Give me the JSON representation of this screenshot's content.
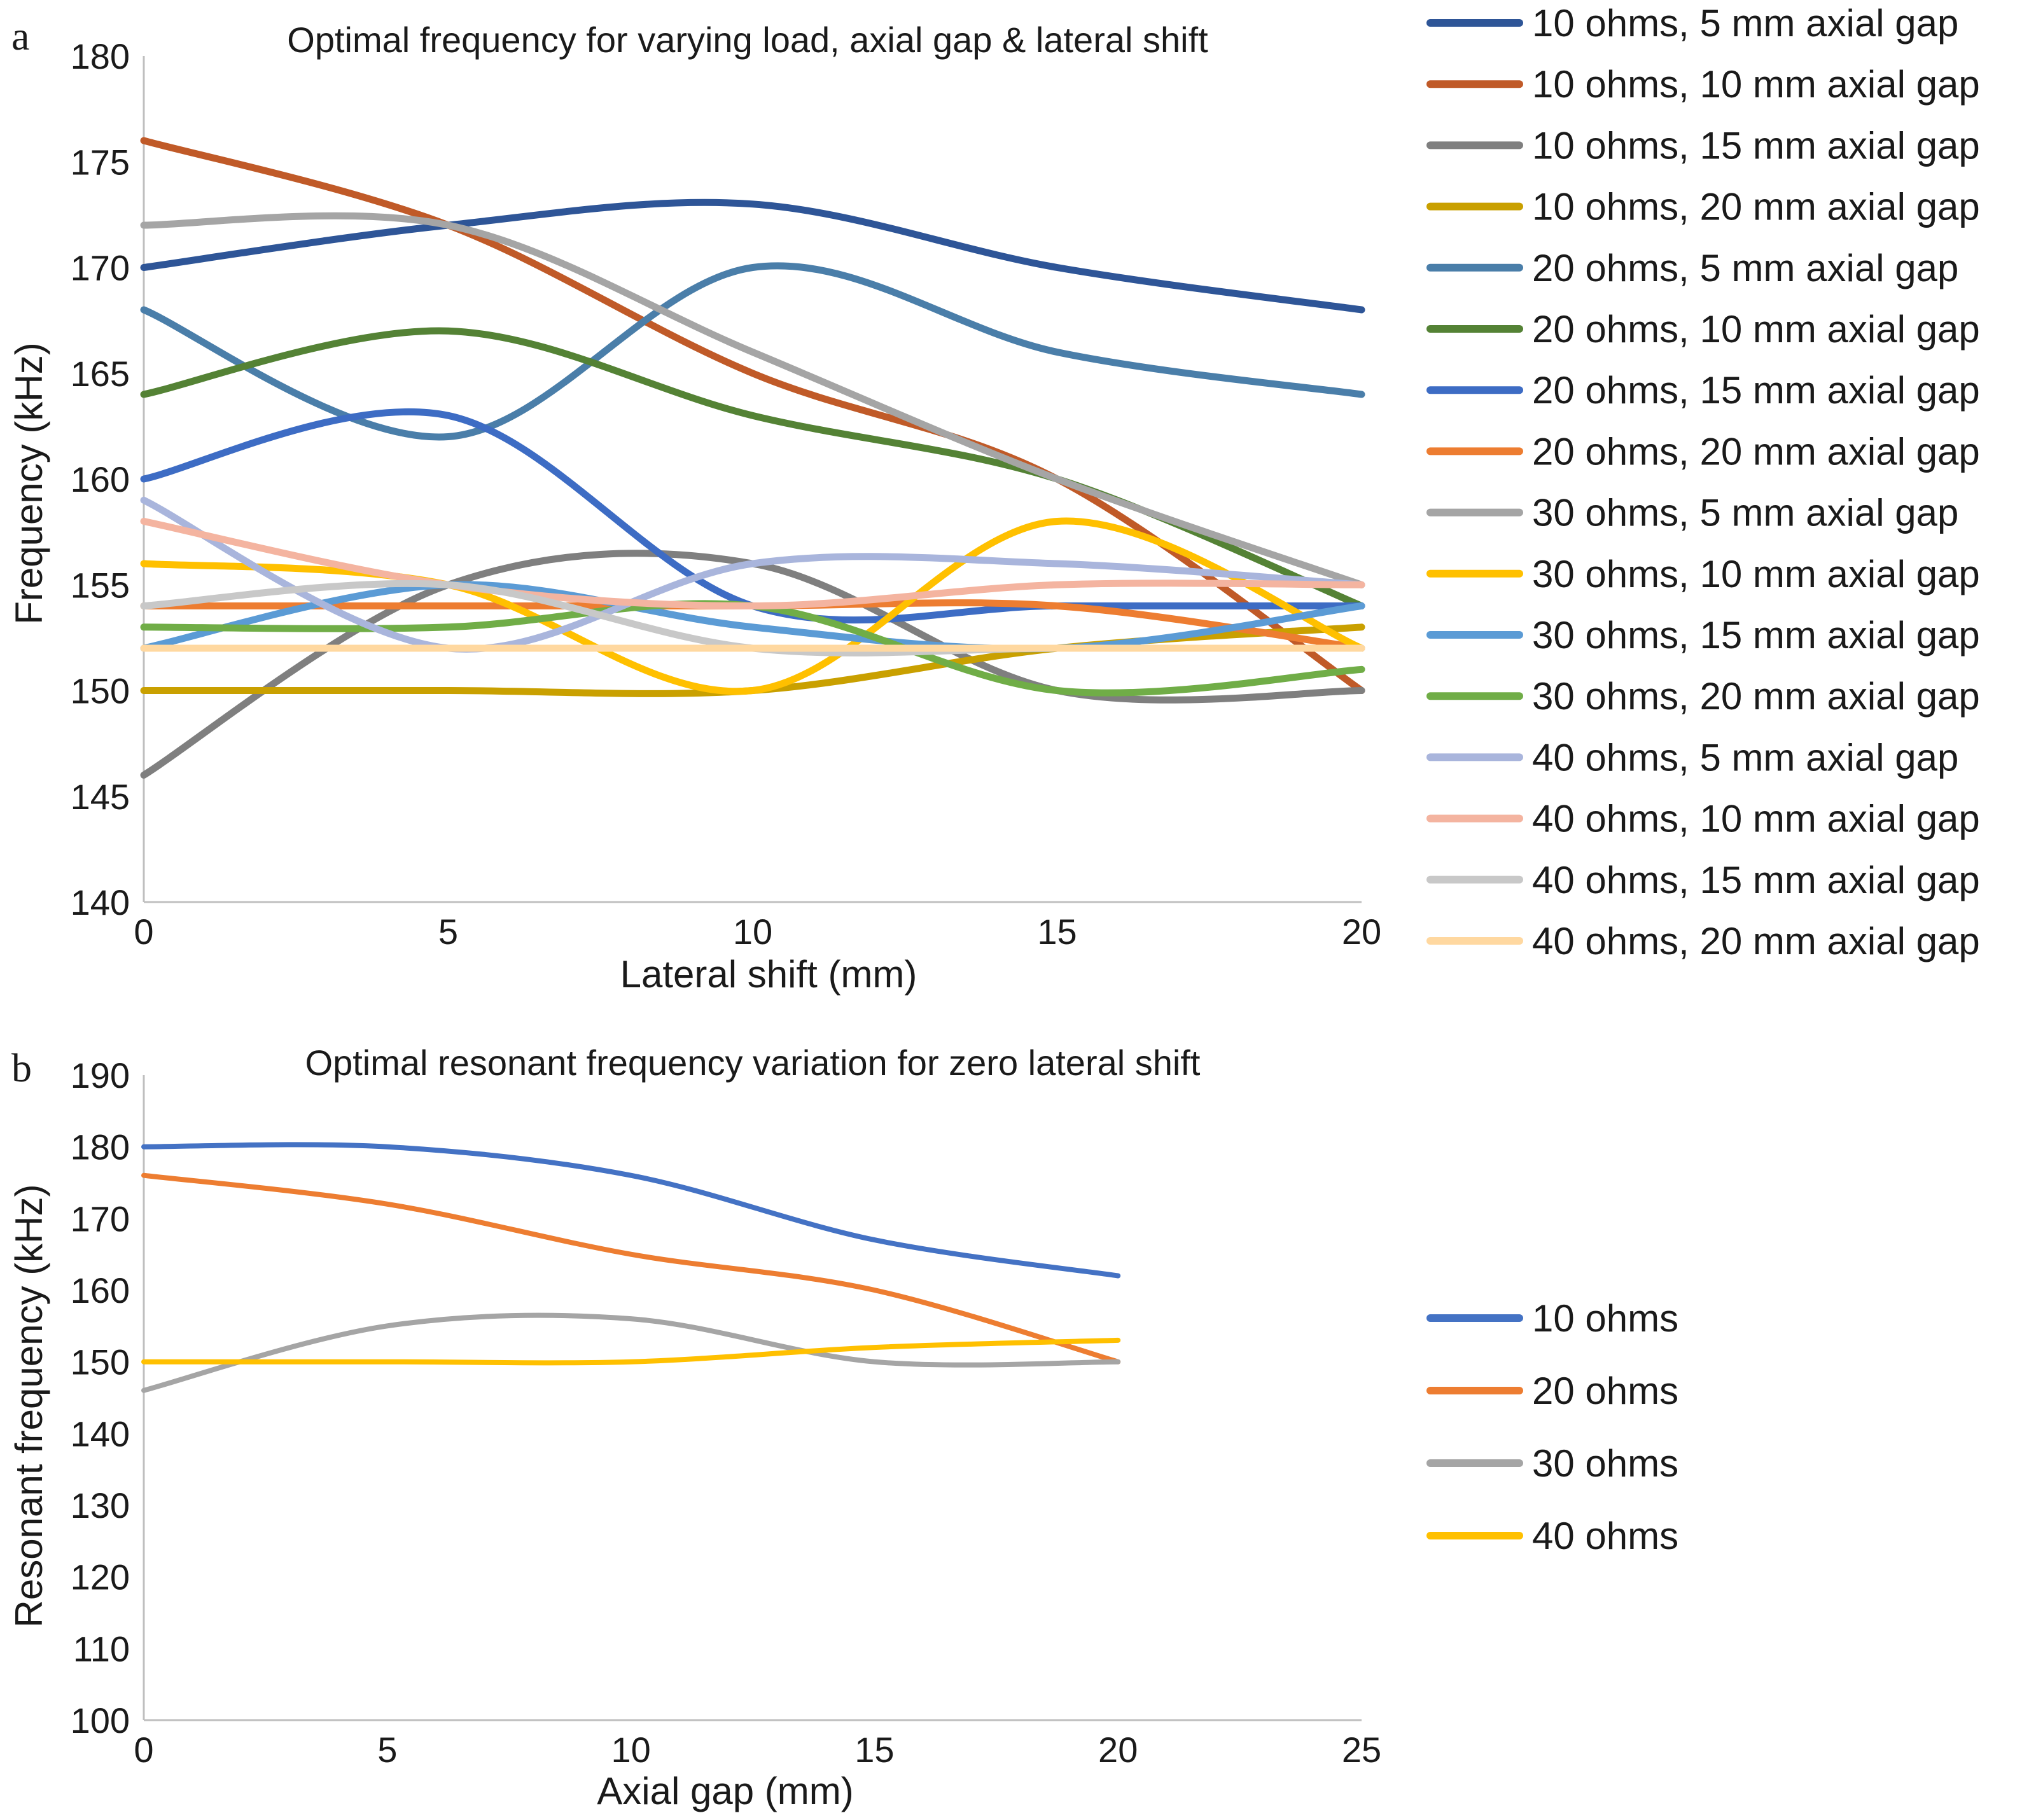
{
  "chart_data": [
    {
      "panel": "a",
      "type": "line",
      "title": "Optimal frequency for varying load, axial gap & lateral shift",
      "xlabel": "Lateral shift (mm)",
      "ylabel": "Frequency (kHz)",
      "xlim": [
        0,
        20
      ],
      "ylim": [
        140,
        180
      ],
      "xticks": [
        0,
        5,
        10,
        15,
        20
      ],
      "yticks": [
        140,
        145,
        150,
        155,
        160,
        165,
        170,
        175,
        180
      ],
      "legend_position": "right",
      "grid": false,
      "x": [
        0,
        5,
        10,
        15,
        20
      ],
      "series": [
        {
          "name": "10 ohms, 5 mm axial gap",
          "color": "#2E5597",
          "values": [
            170,
            172,
            173,
            170,
            168
          ]
        },
        {
          "name": "10 ohms, 10 mm axial gap",
          "color": "#C05A28",
          "values": [
            176,
            172,
            165,
            160,
            150
          ]
        },
        {
          "name": "10 ohms, 15 mm axial gap",
          "color": "#7F7F7F",
          "values": [
            146,
            155,
            156,
            150,
            150
          ]
        },
        {
          "name": "10 ohms, 20 mm axial gap",
          "color": "#C9A000",
          "values": [
            150,
            150,
            150,
            152,
            153
          ]
        },
        {
          "name": "20 ohms, 5 mm axial gap",
          "color": "#4A7EA9",
          "values": [
            168,
            162,
            170,
            166,
            164
          ]
        },
        {
          "name": "20 ohms, 10 mm axial gap",
          "color": "#548235",
          "values": [
            164,
            167,
            163,
            160,
            154
          ]
        },
        {
          "name": "20 ohms, 15 mm axial gap",
          "color": "#3D6CC4",
          "values": [
            160,
            163,
            154,
            154,
            154
          ]
        },
        {
          "name": "20 ohms, 20 mm axial gap",
          "color": "#ED7D31",
          "values": [
            154,
            154,
            154,
            154,
            152
          ]
        },
        {
          "name": "30 ohms, 5 mm axial gap",
          "color": "#A5A5A5",
          "values": [
            172,
            172,
            166,
            160,
            155
          ]
        },
        {
          "name": "30 ohms, 10 mm axial gap",
          "color": "#FFC000",
          "values": [
            156,
            155,
            150,
            158,
            152
          ]
        },
        {
          "name": "30 ohms, 15 mm axial gap",
          "color": "#5B9BD5",
          "values": [
            152,
            155,
            153,
            152,
            154
          ]
        },
        {
          "name": "30 ohms, 20 mm axial gap",
          "color": "#70AD47",
          "values": [
            153,
            153,
            154,
            150,
            151
          ]
        },
        {
          "name": "40 ohms, 5 mm axial gap",
          "color": "#A9B5DC",
          "values": [
            159,
            152,
            156,
            156,
            155
          ]
        },
        {
          "name": "40 ohms, 10 mm axial gap",
          "color": "#F4B4A0",
          "values": [
            158,
            155,
            154,
            155,
            155
          ]
        },
        {
          "name": "40 ohms, 15 mm axial gap",
          "color": "#C8C8C8",
          "values": [
            154,
            155,
            152,
            152,
            152
          ]
        },
        {
          "name": "40 ohms, 20 mm axial gap",
          "color": "#FFD8A0",
          "values": [
            152,
            152,
            152,
            152,
            152
          ]
        }
      ]
    },
    {
      "panel": "b",
      "type": "line",
      "title": "Optimal resonant frequency variation for zero lateral shift",
      "xlabel": "Axial gap (mm)",
      "ylabel": "Resonant frequency (kHz)",
      "xlim": [
        0,
        25
      ],
      "ylim": [
        100,
        190
      ],
      "xticks": [
        0,
        5,
        10,
        15,
        20,
        25
      ],
      "yticks": [
        100,
        110,
        120,
        130,
        140,
        150,
        160,
        170,
        180,
        190
      ],
      "legend_position": "right",
      "grid": false,
      "x": [
        0,
        5,
        10,
        15,
        20
      ],
      "series": [
        {
          "name": "10 ohms",
          "color": "#4472C4",
          "values": [
            180,
            180,
            176,
            167,
            162
          ]
        },
        {
          "name": "20 ohms",
          "color": "#ED7D31",
          "values": [
            176,
            172,
            165,
            160,
            150
          ]
        },
        {
          "name": "30 ohms",
          "color": "#A5A5A5",
          "values": [
            146,
            155,
            156,
            150,
            150
          ]
        },
        {
          "name": "40 ohms",
          "color": "#FFC000",
          "values": [
            150,
            150,
            150,
            152,
            153
          ]
        }
      ]
    }
  ]
}
